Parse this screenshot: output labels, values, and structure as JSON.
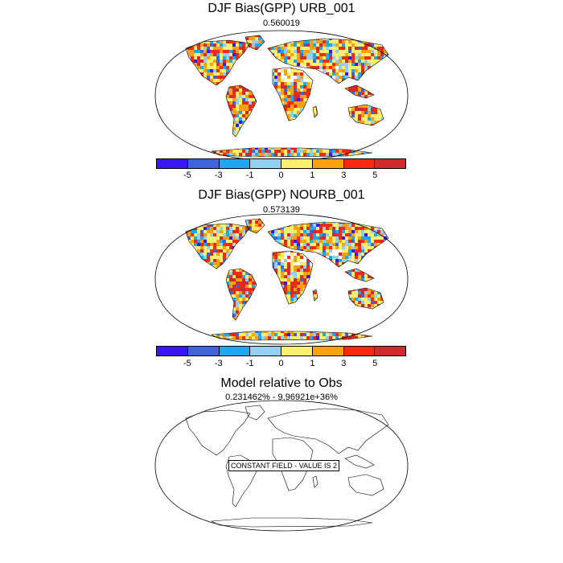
{
  "panels": [
    {
      "title": "DJF Bias(GPP) URB_001",
      "subtitle": "0.560019",
      "land_fill": true
    },
    {
      "title": "DJF Bias(GPP) NOURB_001",
      "subtitle": "0.573139",
      "land_fill": true
    },
    {
      "title": "Model relative to Obs",
      "subtitle": "0.231462% - 9.96921e+36%",
      "land_fill": false,
      "annotation": "CONSTANT FIELD - VALUE IS 2"
    }
  ],
  "colorbar": {
    "colors": [
      "#3a16f0",
      "#3e64dc",
      "#1fa7f2",
      "#92cff0",
      "#f8ef70",
      "#fba00e",
      "#f72a0f",
      "#d02b2b"
    ],
    "tick_labels": [
      "-5",
      "-3",
      "-1",
      "0",
      "1",
      "3",
      "5"
    ]
  }
}
